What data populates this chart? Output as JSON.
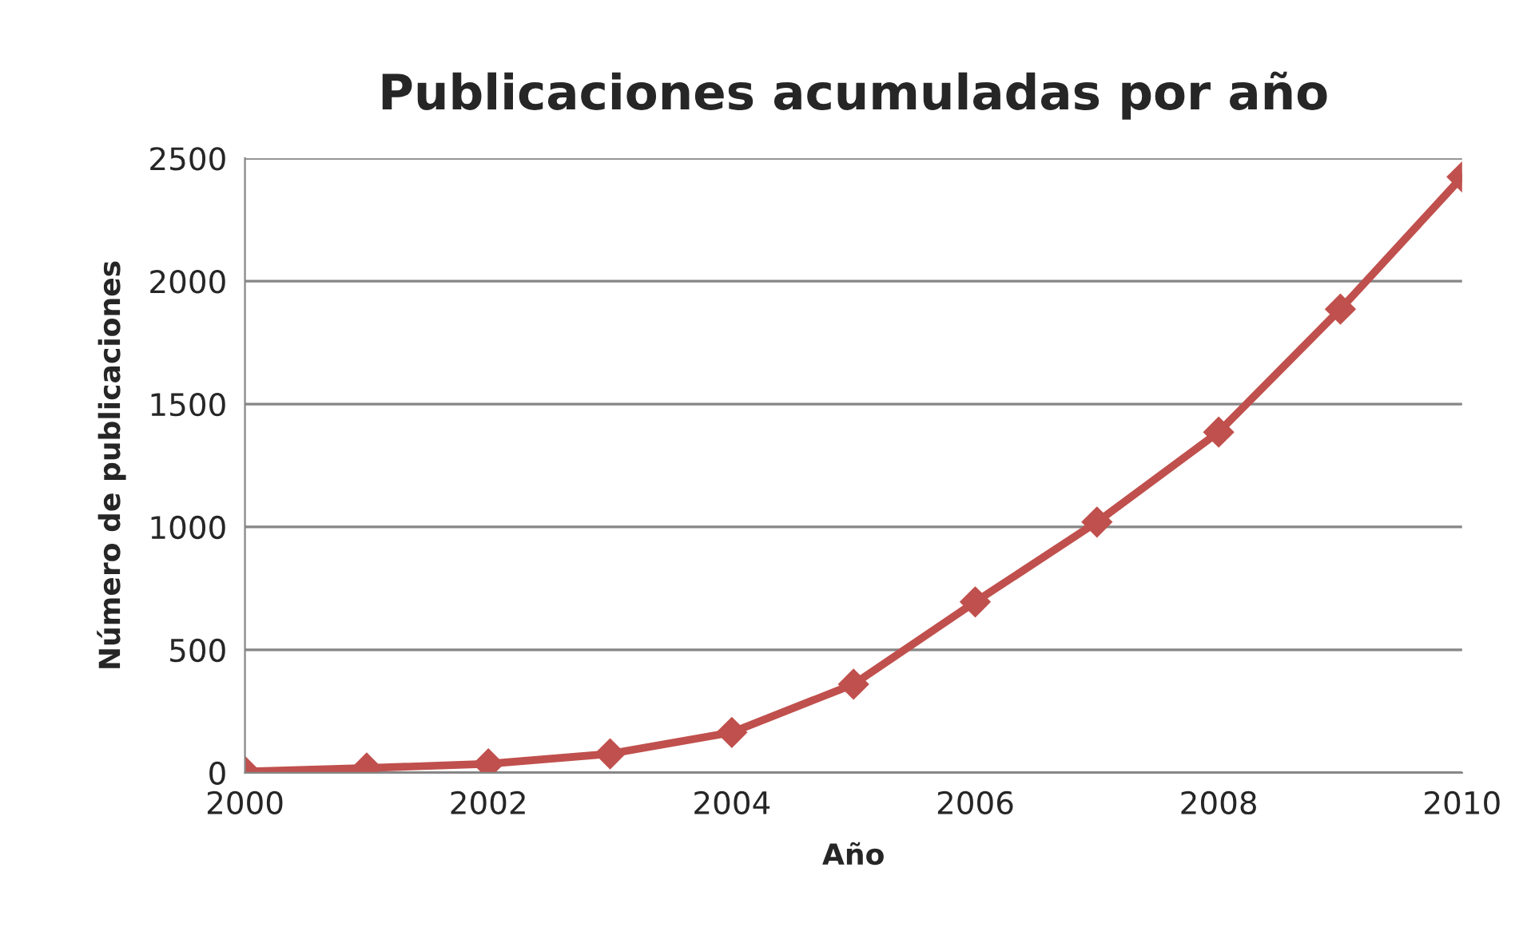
{
  "chart_data": {
    "type": "line",
    "title": "Publicaciones acumuladas por año",
    "xlabel": "Año",
    "ylabel": "Número de publicaciones",
    "x": [
      2000,
      2001,
      2002,
      2003,
      2004,
      2005,
      2006,
      2007,
      2008,
      2009,
      2010
    ],
    "series": [
      {
        "color": "#c0504d",
        "values": [
          5,
          19,
          36,
          77,
          164,
          360,
          695,
          1020,
          1386,
          1886,
          2424
        ]
      }
    ],
    "xlim": [
      2000,
      2010
    ],
    "xticks": [
      2000,
      2002,
      2004,
      2006,
      2008,
      2010
    ],
    "ylim": [
      0,
      2500
    ],
    "yticks": [
      0,
      500,
      1000,
      1500,
      2000,
      2500
    ],
    "grid": "y",
    "legend": false,
    "marker": "diamond",
    "line_style": "solid"
  }
}
